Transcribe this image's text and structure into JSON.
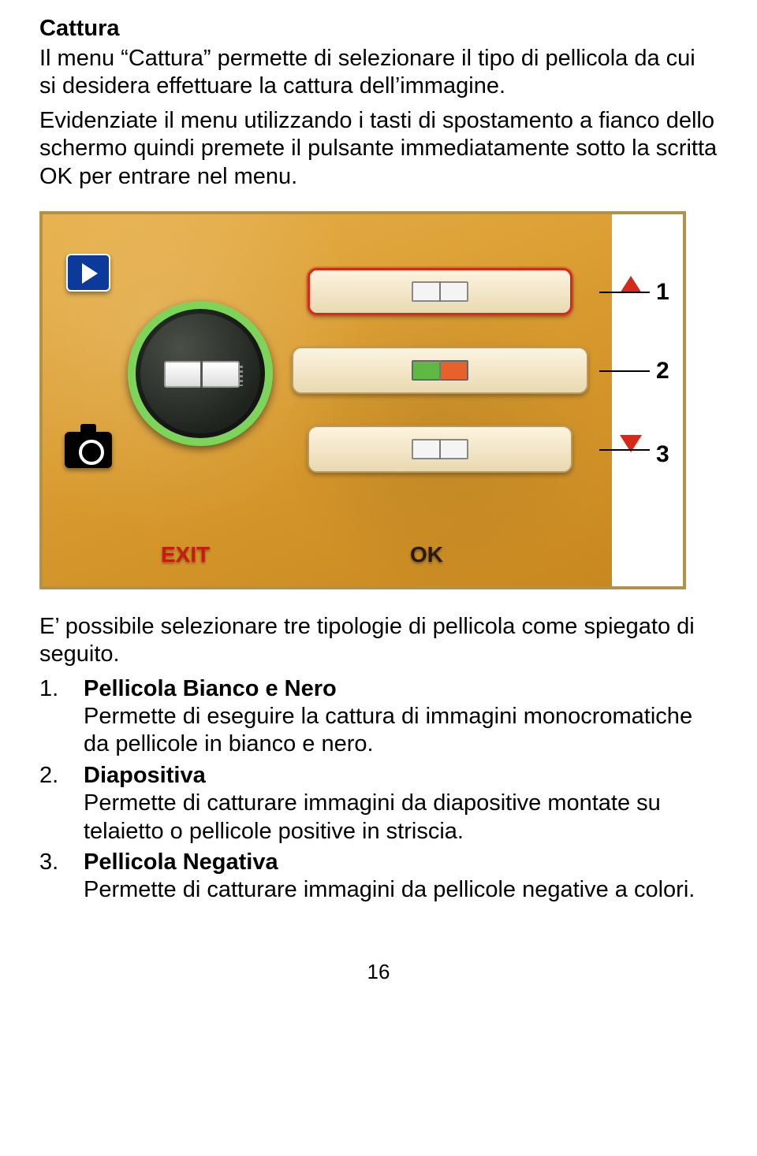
{
  "heading": "Cattura",
  "intro_p1": "Il menu “Cattura” permette di selezionare il tipo di pellicola da cui si desidera effettuare la cattura dell’immagine.",
  "intro_p2": "Evidenziate il menu utilizzando i tasti di spostamento a fianco dello schermo quindi premete il pulsante immediatamente sotto la scritta OK per entrare nel menu.",
  "figure": {
    "border_color": "#b2914a",
    "background_gradient": [
      "#e7b04a",
      "#d89a2e",
      "#c88820"
    ],
    "left_icons": {
      "play": {
        "fill": "#0b3a9a",
        "triangle": "#ffffff"
      },
      "camera": {
        "fill": "#000000",
        "ring": "#ffffff"
      }
    },
    "dial": {
      "ring_color": "#7cd45a",
      "center_film_colors": [
        "#ffffff",
        "#dddddd"
      ]
    },
    "bars": [
      {
        "index": 1,
        "selected": true,
        "thumb": "bw"
      },
      {
        "index": 2,
        "selected": false,
        "thumb": "color"
      },
      {
        "index": 3,
        "selected": false,
        "thumb": "bw"
      }
    ],
    "selected_border_color": "#d42a1a",
    "arrow_color": "#d42a1a",
    "exit_label": "EXIT",
    "exit_color": "#c91a0e",
    "ok_label": "OK",
    "ok_color": "#2b1a0a",
    "callout_numbers": [
      "1",
      "2",
      "3"
    ]
  },
  "post_figure": "E’ possibile selezionare tre tipologie di pellicola come spiegato di seguito.",
  "list": [
    {
      "num": "1.",
      "title": "Pellicola Bianco e Nero",
      "body": "Permette di eseguire la cattura di immagini monocromatiche da pellicole in bianco e nero."
    },
    {
      "num": "2.",
      "title": "Diapositiva",
      "body": "Permette di catturare immagini da diapositive montate su telaietto o pellicole positive in striscia."
    },
    {
      "num": "3.",
      "title": "Pellicola Negativa",
      "body": "Permette di catturare immagini da pellicole negative a colori."
    }
  ],
  "page_number": "16"
}
